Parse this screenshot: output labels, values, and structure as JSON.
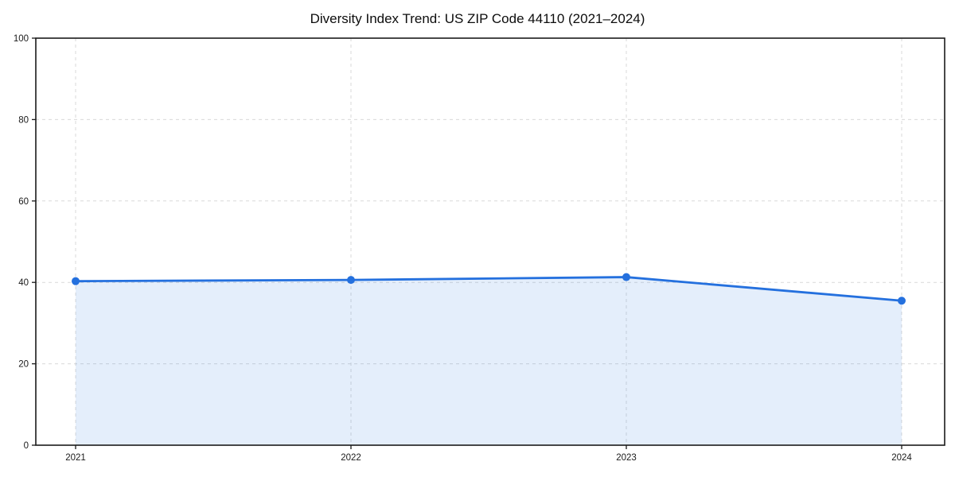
{
  "chart_data": {
    "type": "line",
    "title": "Diversity Index Trend: US ZIP Code 44110 (2021–2024)",
    "categories": [
      "2021",
      "2022",
      "2023",
      "2024"
    ],
    "series": [
      {
        "name": "Diversity Index",
        "values": [
          40.3,
          40.6,
          41.3,
          35.5
        ]
      }
    ],
    "xlabel": "",
    "ylabel": "",
    "ylim": [
      0,
      100
    ],
    "yticks": [
      0,
      20,
      40,
      60,
      80,
      100
    ],
    "grid": true,
    "grid_style": "dashed",
    "legend": "none",
    "marker": "circle",
    "area_fill": true,
    "colors": {
      "line": "#2470de",
      "marker": "#2470de",
      "fill_base": "#2470de",
      "grid": "#d9d9d9",
      "axis": "#1a1a1a",
      "tick_text": "#1a1a1a",
      "title_text": "#0d0d0d",
      "background": "#ffffff"
    },
    "fill_opacity": 0.12
  }
}
